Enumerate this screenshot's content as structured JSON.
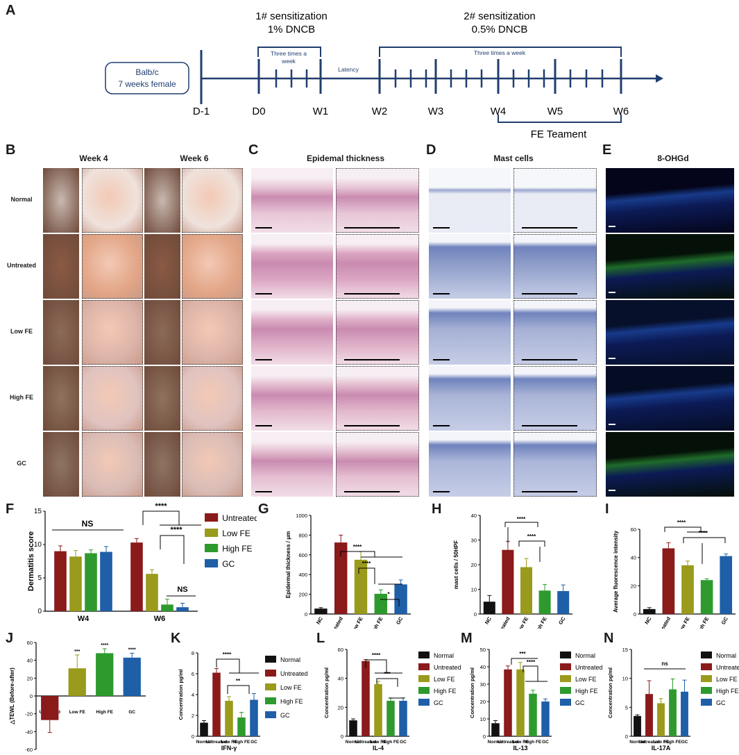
{
  "colors": {
    "Normal": "#111111",
    "NC": "#111111",
    "Untreated": "#8b1a1a",
    "Low FE": "#9a9a1c",
    "High FE": "#2e9a2e",
    "GC": "#1f5fa8"
  },
  "panel_letters": [
    "A",
    "B",
    "C",
    "D",
    "E",
    "F",
    "G",
    "H",
    "I",
    "J",
    "K",
    "L",
    "M",
    "N"
  ],
  "timeline": {
    "mouse_label_1": "Balb/c",
    "mouse_label_2": "7 weeks female",
    "sens1_title": "1# sensitization",
    "sens1_dose": "1% DNCB",
    "sens1_freq_1": "Three times a",
    "sens1_freq_2": "week",
    "latency": "Latency",
    "sens2_title": "2# sensitization",
    "sens2_dose": "0.5% DNCB",
    "sens2_freq": "Three times a week",
    "ticks": [
      "D-1",
      "D0",
      "W1",
      "W2",
      "W3",
      "W4",
      "W5",
      "W6"
    ],
    "treatment": "FE Teament"
  },
  "image_grid": {
    "col_b_week4": "Week  4",
    "col_b_week6": "Week  6",
    "col_c": "Epidemal thickness",
    "col_d": "Mast cells",
    "col_e": "8-OHGd",
    "rows": [
      "Normal",
      "Untreated",
      "Low FE",
      "High FE",
      "GC"
    ]
  },
  "chart_data": [
    {
      "id": "F",
      "type": "bar",
      "ylabel": "Dermatitis score",
      "categories": [
        "W4",
        "W6"
      ],
      "ylim": [
        0,
        15
      ],
      "yticks": [
        0,
        5,
        10,
        15
      ],
      "series": [
        {
          "name": "Untreated",
          "values": [
            9.0,
            10.3
          ],
          "err": [
            0.8,
            0.6
          ]
        },
        {
          "name": "Low FE",
          "values": [
            8.2,
            5.6
          ],
          "err": [
            0.9,
            0.6
          ]
        },
        {
          "name": "High FE",
          "values": [
            8.7,
            1.0
          ],
          "err": [
            0.5,
            0.8
          ]
        },
        {
          "name": "GC",
          "values": [
            8.9,
            0.6
          ],
          "err": [
            0.8,
            0.6
          ]
        }
      ],
      "annotations": [
        "NS",
        "****",
        "****",
        "NS"
      ]
    },
    {
      "id": "G",
      "type": "bar",
      "ylabel": "Epidermal thickness / μm",
      "categories": [
        "NC",
        "Untreated",
        "Low FE",
        "High FE",
        "GC"
      ],
      "values": [
        55,
        725,
        550,
        205,
        300
      ],
      "err": [
        10,
        75,
        85,
        40,
        45
      ],
      "ylim": [
        0,
        1000
      ],
      "yticks": [
        0,
        200,
        400,
        600,
        800,
        1000
      ],
      "annotations": [
        "****",
        "****",
        "*"
      ]
    },
    {
      "id": "H",
      "type": "bar",
      "ylabel": "mast cells / 50HPF",
      "categories": [
        "NC",
        "Untreated",
        "Low FE",
        "High FE",
        "GC"
      ],
      "values": [
        5,
        26,
        19,
        9.5,
        9.3
      ],
      "err": [
        2.5,
        3.5,
        3.5,
        2.5,
        2.5
      ],
      "ylim": [
        0,
        40
      ],
      "yticks": [
        0,
        10,
        20,
        30,
        40
      ],
      "annotations": [
        "****",
        "****"
      ]
    },
    {
      "id": "I",
      "type": "bar",
      "ylabel": "Average fluorescence intensity",
      "categories": [
        "NC",
        "Untreated",
        "Low FE",
        "High FE",
        "GC"
      ],
      "values": [
        3.5,
        46.5,
        34.5,
        24,
        41
      ],
      "err": [
        1,
        4,
        3,
        1,
        1.5
      ],
      "ylim": [
        0,
        60
      ],
      "yticks": [
        0,
        20,
        40,
        60
      ],
      "annotations": [
        "****",
        "****"
      ]
    },
    {
      "id": "J",
      "type": "bar",
      "ylabel": "△TEWL  (Before-after)",
      "categories": [
        "Untreated",
        "Low FE",
        "High FE",
        "GC"
      ],
      "values": [
        -27,
        31,
        48,
        43
      ],
      "err": [
        14,
        15,
        5,
        5
      ],
      "ylim": [
        -60,
        60
      ],
      "yticks": [
        -60,
        -40,
        -20,
        0,
        20,
        40,
        60
      ],
      "annotations": [
        "***",
        "****",
        "****"
      ]
    },
    {
      "id": "K",
      "type": "bar",
      "xlabel": "IFN-γ",
      "ylabel": "Concentration pg/ml",
      "categories": [
        "Normal",
        "Untreated",
        "Low FE",
        "High FE",
        "GC"
      ],
      "values": [
        1.3,
        6.1,
        3.4,
        1.8,
        3.5
      ],
      "err": [
        0.2,
        0.4,
        0.4,
        0.5,
        0.6
      ],
      "ylim": [
        0,
        8
      ],
      "yticks": [
        0,
        2,
        4,
        6,
        8
      ],
      "annotations": [
        "****",
        "**"
      ]
    },
    {
      "id": "L",
      "type": "bar",
      "xlabel": "IL-4",
      "ylabel": "Concentration pg/ml",
      "categories": [
        "Normal",
        "Untreated",
        "Low FE",
        "High FE",
        "GC"
      ],
      "values": [
        11,
        52,
        36,
        24.5,
        24.5
      ],
      "err": [
        1,
        1,
        2,
        2,
        2
      ],
      "ylim": [
        0,
        60
      ],
      "yticks": [
        0,
        20,
        40,
        60
      ],
      "annotations": [
        "****",
        "***"
      ]
    },
    {
      "id": "M",
      "type": "bar",
      "xlabel": "IL-13",
      "ylabel": "Concentration pg/ml",
      "categories": [
        "Normal",
        "Untreated",
        "Low FE",
        "High FE",
        "GC"
      ],
      "values": [
        7.5,
        38.5,
        38.5,
        24.5,
        20
      ],
      "err": [
        1.5,
        2,
        4,
        2,
        1.5
      ],
      "ylim": [
        0,
        50
      ],
      "yticks": [
        0,
        10,
        20,
        30,
        40,
        50
      ],
      "annotations": [
        "***",
        "****"
      ]
    },
    {
      "id": "N",
      "type": "bar",
      "xlabel": "IL-17A",
      "ylabel": "Concentration pg/ml",
      "categories": [
        "Normal",
        "Untreated",
        "Low FE",
        "High FE",
        "GC"
      ],
      "values": [
        3.5,
        7.3,
        5.7,
        8.1,
        7.7
      ],
      "err": [
        0.2,
        2.3,
        0.8,
        1.8,
        2
      ],
      "ylim": [
        0,
        15
      ],
      "yticks": [
        0,
        5,
        10,
        15
      ],
      "annotations": [
        "ns"
      ]
    }
  ]
}
